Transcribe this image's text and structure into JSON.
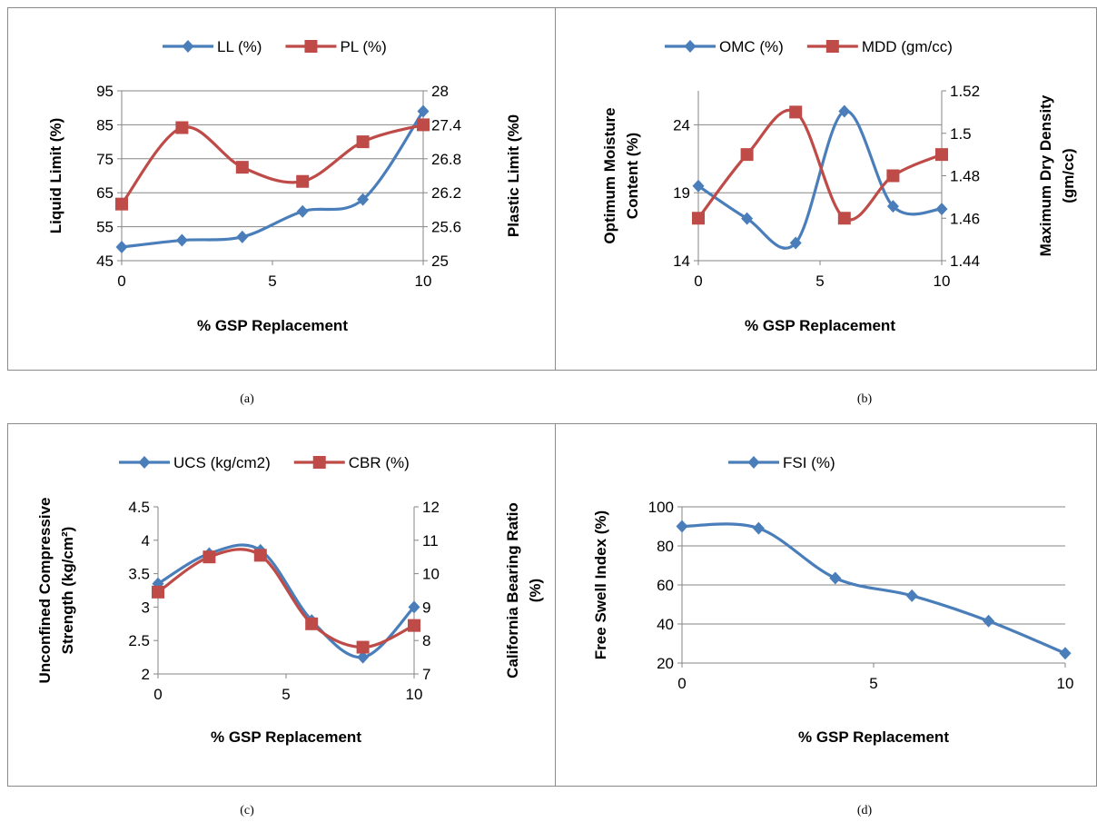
{
  "colors": {
    "blue": "#4A7EBB",
    "red": "#BE4B48",
    "grid": "#868686",
    "axis": "#868686"
  },
  "chart_data": [
    {
      "type": "line",
      "caption": "(a)",
      "xlabel": "% GSP Replacement",
      "ylabel_left": "Liquid Limit (%)",
      "ylabel_right": "Plastic Limit (%0",
      "x": [
        0,
        2,
        4,
        6,
        8,
        10
      ],
      "x_ticks": [
        "0",
        "5",
        "10"
      ],
      "xlim": [
        0,
        10
      ],
      "ylim_left": [
        45,
        95
      ],
      "ylim_right": [
        25,
        28
      ],
      "y_ticks_left": [
        "45",
        "55",
        "65",
        "75",
        "85",
        "95"
      ],
      "y_ticks_right": [
        "25",
        "25.6",
        "26.2",
        "26.8",
        "27.4",
        "28"
      ],
      "legend_position": "top",
      "grid": true,
      "series": [
        {
          "name": "LL (%)",
          "axis": "left",
          "marker": "diamond",
          "color": "#4A7EBB",
          "values": [
            49,
            51,
            52,
            59.5,
            63,
            89
          ]
        },
        {
          "name": "PL (%)",
          "axis": "right",
          "marker": "square",
          "color": "#BE4B48",
          "values": [
            26.0,
            27.35,
            26.65,
            26.4,
            27.1,
            27.4
          ]
        }
      ]
    },
    {
      "type": "line",
      "caption": "(b)",
      "xlabel": "% GSP Replacement",
      "ylabel_left": [
        "Optimum Moisture",
        "Content (%)"
      ],
      "ylabel_right": [
        "Maximum Dry Density",
        "(gm/cc)"
      ],
      "x": [
        0,
        2,
        4,
        6,
        8,
        10
      ],
      "x_ticks": [
        "0",
        "5",
        "10"
      ],
      "xlim": [
        0,
        10
      ],
      "ylim_left": [
        14,
        26.5
      ],
      "ylim_right": [
        1.44,
        1.52
      ],
      "y_ticks_left": [
        "14",
        "19",
        "24"
      ],
      "y_ticks_right": [
        "1.44",
        "1.46",
        "1.48",
        "1.5",
        "1.52"
      ],
      "legend_position": "top",
      "grid": true,
      "series": [
        {
          "name": "OMC (%)",
          "axis": "left",
          "marker": "diamond",
          "color": "#4A7EBB",
          "values": [
            19.5,
            17.1,
            15.3,
            25,
            18,
            17.8
          ]
        },
        {
          "name": "MDD (gm/cc)",
          "axis": "right",
          "marker": "square",
          "color": "#BE4B48",
          "values": [
            1.46,
            1.49,
            1.51,
            1.46,
            1.48,
            1.49
          ]
        }
      ]
    },
    {
      "type": "line",
      "caption": "(c)",
      "xlabel": "% GSP Replacement",
      "ylabel_left": [
        "Unconfined Compressive",
        "Strength (kg/cm²)"
      ],
      "ylabel_right": [
        "California Bearing Ratio",
        "(%)"
      ],
      "x": [
        0,
        2,
        4,
        6,
        8,
        10
      ],
      "x_ticks": [
        "0",
        "5",
        "10"
      ],
      "xlim": [
        0,
        10
      ],
      "ylim_left": [
        2,
        4.5
      ],
      "ylim_right": [
        7,
        12
      ],
      "y_ticks_left": [
        "2",
        "2.5",
        "3",
        "3.5",
        "4",
        "4.5"
      ],
      "y_ticks_right": [
        "7",
        "8",
        "9",
        "10",
        "11",
        "12"
      ],
      "legend_position": "top",
      "grid": false,
      "series": [
        {
          "name": "UCS (kg/cm2)",
          "axis": "left",
          "marker": "diamond",
          "color": "#4A7EBB",
          "values": [
            3.35,
            3.8,
            3.85,
            2.8,
            2.25,
            3.0
          ]
        },
        {
          "name": "CBR (%)",
          "axis": "right",
          "marker": "square",
          "color": "#BE4B48",
          "values": [
            9.45,
            10.5,
            10.55,
            8.5,
            7.8,
            8.45
          ]
        }
      ]
    },
    {
      "type": "line",
      "caption": "(d)",
      "xlabel": "% GSP Replacement",
      "ylabel_left": "Free Swell Index (%)",
      "x": [
        0,
        2,
        4,
        6,
        8,
        10
      ],
      "x_ticks": [
        "0",
        "5",
        "10"
      ],
      "xlim": [
        0,
        10
      ],
      "ylim_left": [
        20,
        100
      ],
      "y_ticks_left": [
        "20",
        "40",
        "60",
        "80",
        "100"
      ],
      "legend_position": "top",
      "grid": true,
      "series": [
        {
          "name": "FSI (%)",
          "axis": "left",
          "marker": "diamond",
          "color": "#4A7EBB",
          "values": [
            90,
            89,
            63.5,
            54.5,
            41.5,
            25
          ]
        }
      ]
    }
  ]
}
